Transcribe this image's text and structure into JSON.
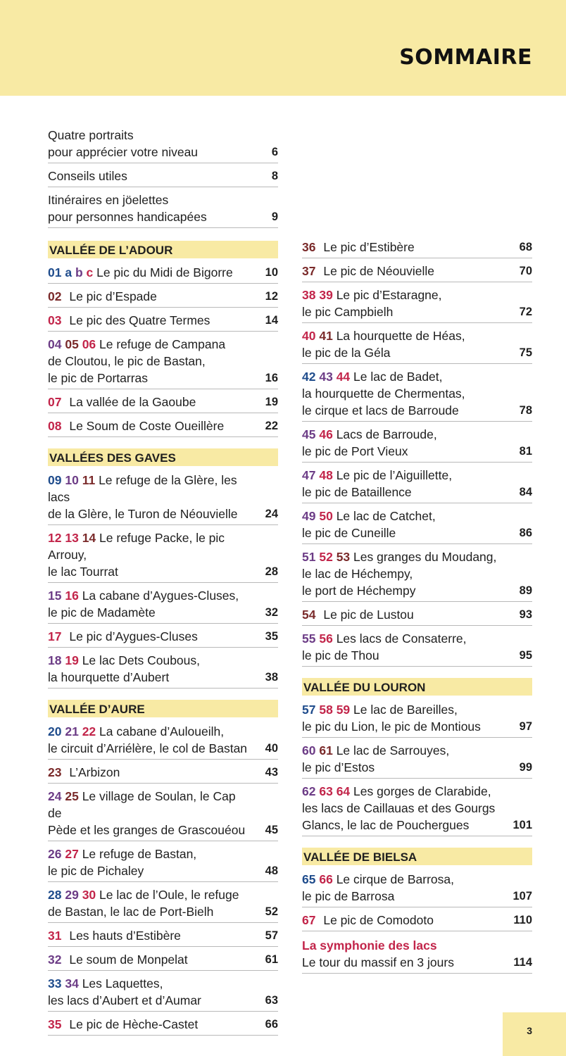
{
  "title": "SOMMAIRE",
  "page_number": "3",
  "intro": [
    {
      "lines": [
        "Quatre portraits",
        "pour apprécier votre niveau"
      ],
      "page": "6"
    },
    {
      "lines": [
        "Conseils utiles"
      ],
      "page": "8"
    },
    {
      "lines": [
        "Itinéraires en jöelettes",
        "pour personnes handicapées"
      ],
      "page": "9"
    }
  ],
  "sections": {
    "adour": "VALLÉE DE L’ADOUR",
    "gaves": "VALLÉES DES GAVES",
    "aure": "VALLÉE D’AURE",
    "louron": "VALLÉE DU LOURON",
    "bielsa": "VALLÉE DE BIELSA"
  },
  "left_entries": {
    "adour": [
      {
        "nums": [
          {
            "t": "01",
            "c": "blue"
          },
          {
            "t": "a",
            "c": "blue"
          },
          {
            "t": "b",
            "c": "purple"
          },
          {
            "t": "c",
            "c": "red"
          }
        ],
        "lines": [
          "Le pic du Midi de Bigorre"
        ],
        "page": "10"
      },
      {
        "nums": [
          {
            "t": "02",
            "c": "brown"
          }
        ],
        "lines": [
          "Le pic d’Espade"
        ],
        "page": "12"
      },
      {
        "nums": [
          {
            "t": "03",
            "c": "red"
          }
        ],
        "lines": [
          "Le pic des Quatre Termes"
        ],
        "page": "14"
      },
      {
        "nums": [
          {
            "t": "04",
            "c": "purple"
          },
          {
            "t": "05",
            "c": "brown"
          },
          {
            "t": "06",
            "c": "red"
          }
        ],
        "lines": [
          "Le refuge de Campana",
          "de Cloutou, le pic de Bastan,",
          "le pic de Portarras"
        ],
        "page": "16"
      },
      {
        "nums": [
          {
            "t": "07",
            "c": "red"
          }
        ],
        "lines": [
          "La vallée de la Gaoube"
        ],
        "page": "19"
      },
      {
        "nums": [
          {
            "t": "08",
            "c": "red"
          }
        ],
        "lines": [
          "Le Soum de Coste Oueillère"
        ],
        "page": "22"
      }
    ],
    "gaves": [
      {
        "nums": [
          {
            "t": "09",
            "c": "blue"
          },
          {
            "t": "10",
            "c": "purple"
          },
          {
            "t": "11",
            "c": "brown"
          }
        ],
        "lines": [
          "Le refuge de la Glère, les lacs",
          "de la Glère, le Turon de Néouvielle"
        ],
        "page": "24"
      },
      {
        "nums": [
          {
            "t": "12",
            "c": "red"
          },
          {
            "t": "13",
            "c": "red"
          },
          {
            "t": "14",
            "c": "brown"
          }
        ],
        "lines": [
          "Le refuge Packe, le pic Arrouy,",
          "le lac Tourrat"
        ],
        "page": "28"
      },
      {
        "nums": [
          {
            "t": "15",
            "c": "purple"
          },
          {
            "t": "16",
            "c": "red"
          }
        ],
        "lines": [
          "La cabane d’Aygues-Cluses,",
          "le pic de Madamète"
        ],
        "page": "32"
      },
      {
        "nums": [
          {
            "t": "17",
            "c": "red"
          }
        ],
        "lines": [
          "Le pic d’Aygues-Cluses"
        ],
        "page": "35"
      },
      {
        "nums": [
          {
            "t": "18",
            "c": "purple"
          },
          {
            "t": "19",
            "c": "red"
          }
        ],
        "lines": [
          "Le lac Dets Coubous,",
          "la hourquette d’Aubert"
        ],
        "page": "38"
      }
    ],
    "aure": [
      {
        "nums": [
          {
            "t": "20",
            "c": "blue"
          },
          {
            "t": "21",
            "c": "purple"
          },
          {
            "t": "22",
            "c": "red"
          }
        ],
        "lines": [
          "La cabane d’Auloueilh,",
          "le circuit d’Arriélère, le col de Bastan"
        ],
        "page": "40"
      },
      {
        "nums": [
          {
            "t": "23",
            "c": "brown"
          }
        ],
        "lines": [
          "L’Arbizon"
        ],
        "page": "43"
      },
      {
        "nums": [
          {
            "t": "24",
            "c": "purple"
          },
          {
            "t": "25",
            "c": "brown"
          }
        ],
        "lines": [
          "Le village de Soulan, le Cap de",
          "Pède et les granges de Grascouéou"
        ],
        "page": "45"
      },
      {
        "nums": [
          {
            "t": "26",
            "c": "purple"
          },
          {
            "t": "27",
            "c": "red"
          }
        ],
        "lines": [
          "Le refuge de Bastan,",
          "le pic de Pichaley"
        ],
        "page": "48"
      },
      {
        "nums": [
          {
            "t": "28",
            "c": "blue"
          },
          {
            "t": "29",
            "c": "purple"
          },
          {
            "t": "30",
            "c": "red"
          }
        ],
        "lines": [
          "Le lac de l’Oule, le refuge",
          "de Bastan, le lac de Port-Bielh"
        ],
        "page": "52"
      },
      {
        "nums": [
          {
            "t": "31",
            "c": "red"
          }
        ],
        "lines": [
          "Les hauts d’Estibère"
        ],
        "page": "57"
      },
      {
        "nums": [
          {
            "t": "32",
            "c": "purple"
          }
        ],
        "lines": [
          "Le soum de Monpelat"
        ],
        "page": "61"
      },
      {
        "nums": [
          {
            "t": "33",
            "c": "blue"
          },
          {
            "t": "34",
            "c": "purple"
          }
        ],
        "lines": [
          "Les Laquettes,",
          "les lacs d’Aubert et d’Aumar"
        ],
        "page": "63"
      },
      {
        "nums": [
          {
            "t": "35",
            "c": "red"
          }
        ],
        "lines": [
          "Le pic de Hèche-Castet"
        ],
        "page": "66"
      }
    ]
  },
  "right_entries": {
    "aure_cont": [
      {
        "nums": [
          {
            "t": "36",
            "c": "brown"
          }
        ],
        "lines": [
          "Le pic d’Estibère"
        ],
        "page": "68"
      },
      {
        "nums": [
          {
            "t": "37",
            "c": "brown"
          }
        ],
        "lines": [
          "Le pic de Néouvielle"
        ],
        "page": "70"
      },
      {
        "nums": [
          {
            "t": "38",
            "c": "red"
          },
          {
            "t": "39",
            "c": "red"
          }
        ],
        "lines": [
          "Le pic d’Estaragne,",
          "le pic Campbielh"
        ],
        "page": "72"
      },
      {
        "nums": [
          {
            "t": "40",
            "c": "red"
          },
          {
            "t": "41",
            "c": "brown"
          }
        ],
        "lines": [
          "La hourquette de Héas,",
          "le pic de la Géla"
        ],
        "page": "75"
      },
      {
        "nums": [
          {
            "t": "42",
            "c": "blue"
          },
          {
            "t": "43",
            "c": "purple"
          },
          {
            "t": "44",
            "c": "red"
          }
        ],
        "lines": [
          "Le lac de Badet,",
          "la hourquette de Chermentas,",
          "le cirque et lacs de Barroude"
        ],
        "page": "78"
      },
      {
        "nums": [
          {
            "t": "45",
            "c": "purple"
          },
          {
            "t": "46",
            "c": "red"
          }
        ],
        "lines": [
          "Lacs de Barroude,",
          "le pic de Port Vieux"
        ],
        "page": "81"
      },
      {
        "nums": [
          {
            "t": "47",
            "c": "purple"
          },
          {
            "t": "48",
            "c": "red"
          }
        ],
        "lines": [
          "Le pic de l’Aiguillette,",
          "le pic de Bataillence"
        ],
        "page": "84"
      },
      {
        "nums": [
          {
            "t": "49",
            "c": "purple"
          },
          {
            "t": "50",
            "c": "red"
          }
        ],
        "lines": [
          "Le lac de Catchet,",
          "le pic de Cuneille"
        ],
        "page": "86"
      },
      {
        "nums": [
          {
            "t": "51",
            "c": "purple"
          },
          {
            "t": "52",
            "c": "red"
          },
          {
            "t": "53",
            "c": "brown"
          }
        ],
        "lines": [
          "Les granges du Moudang,",
          "le lac de Héchempy,",
          "le port de Héchempy"
        ],
        "page": "89"
      },
      {
        "nums": [
          {
            "t": "54",
            "c": "brown"
          }
        ],
        "lines": [
          "Le pic de Lustou"
        ],
        "page": "93"
      },
      {
        "nums": [
          {
            "t": "55",
            "c": "purple"
          },
          {
            "t": "56",
            "c": "red"
          }
        ],
        "lines": [
          "Les lacs de Consaterre,",
          "le pic de Thou"
        ],
        "page": "95"
      }
    ],
    "louron": [
      {
        "nums": [
          {
            "t": "57",
            "c": "blue"
          },
          {
            "t": "58",
            "c": "red"
          },
          {
            "t": "59",
            "c": "red"
          }
        ],
        "lines": [
          "Le lac de Bareilles,",
          "le pic du Lion, le pic de Montious"
        ],
        "page": "97"
      },
      {
        "nums": [
          {
            "t": "60",
            "c": "purple"
          },
          {
            "t": "61",
            "c": "brown"
          }
        ],
        "lines": [
          "Le lac de Sarrouyes,",
          "le pic d’Estos"
        ],
        "page": "99"
      },
      {
        "nums": [
          {
            "t": "62",
            "c": "purple"
          },
          {
            "t": "63",
            "c": "red"
          },
          {
            "t": "64",
            "c": "red"
          }
        ],
        "lines": [
          "Les gorges de Clarabide,",
          "les lacs de Caillauas et des Gourgs",
          "Glancs, le lac de Pouchergues"
        ],
        "page": "101"
      }
    ],
    "bielsa": [
      {
        "nums": [
          {
            "t": "65",
            "c": "blue"
          },
          {
            "t": "66",
            "c": "red"
          }
        ],
        "lines": [
          "Le cirque de Barrosa,",
          "le pic de Barrosa"
        ],
        "page": "107"
      },
      {
        "nums": [
          {
            "t": "67",
            "c": "red"
          }
        ],
        "lines": [
          "Le pic de Comodoto"
        ],
        "page": "110"
      }
    ]
  },
  "symphonie": {
    "heading": "La symphonie des lacs",
    "text": "Le tour du massif en 3 jours",
    "page": "114"
  }
}
